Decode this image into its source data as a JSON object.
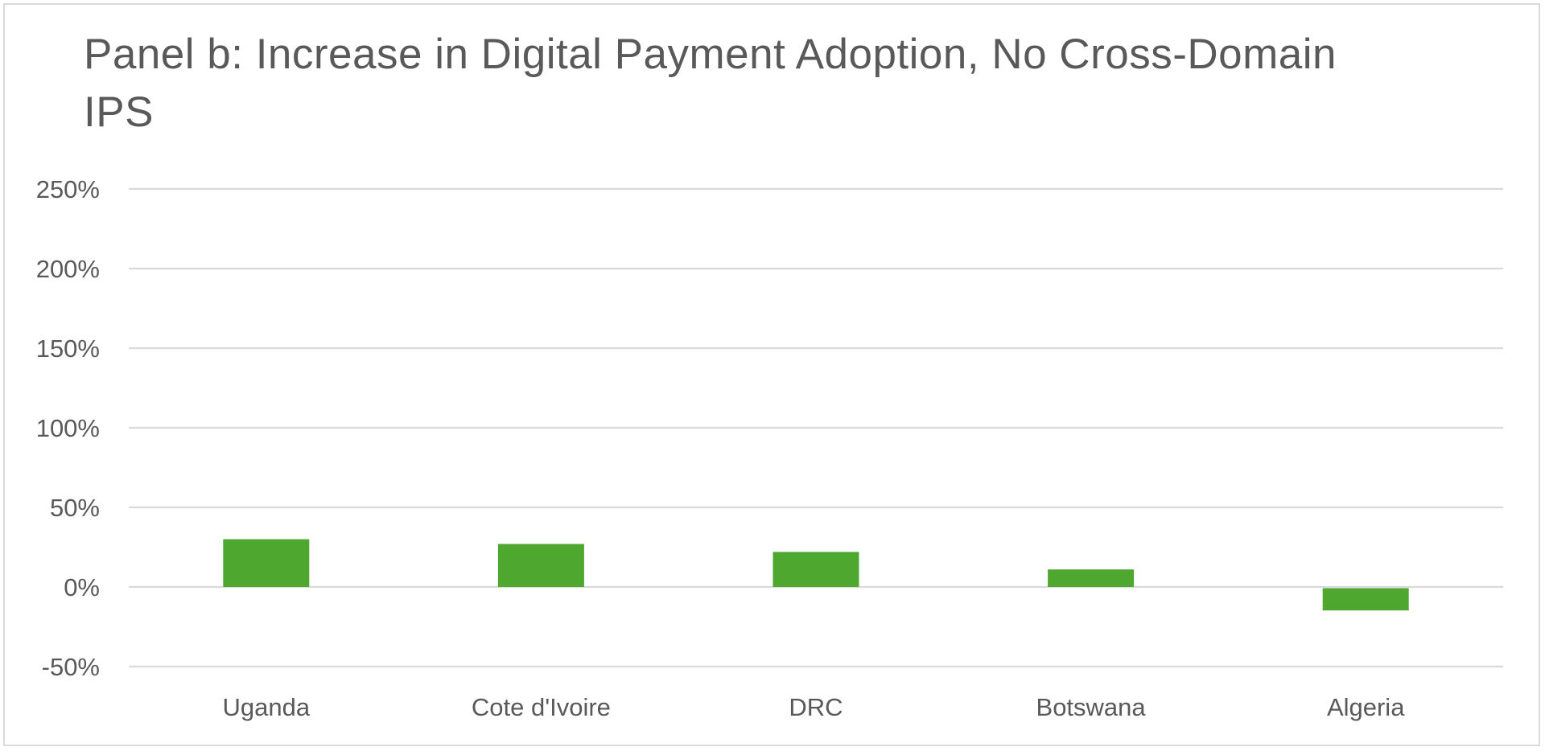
{
  "chart_data": {
    "type": "bar",
    "title": "Panel b: Increase in Digital Payment Adoption, No Cross-Domain IPS",
    "xlabel": "",
    "ylabel": "",
    "categories": [
      "Uganda",
      "Cote d'Ivoire",
      "DRC",
      "Botswana",
      "Algeria"
    ],
    "values": [
      30,
      27,
      22,
      11,
      -14
    ],
    "ylim": [
      -50,
      250
    ],
    "yticks": [
      -50,
      0,
      50,
      100,
      150,
      200,
      250
    ],
    "ytick_labels": [
      "-50%",
      "0%",
      "50%",
      "100%",
      "150%",
      "200%",
      "250%"
    ],
    "grid": true,
    "legend": "none",
    "bar_color": "#4ea72e",
    "grid_color": "#d9d9d9"
  }
}
